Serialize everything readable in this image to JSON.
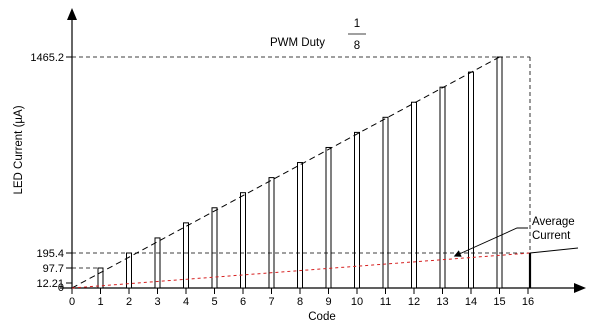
{
  "chart_data": {
    "type": "bar",
    "title_prefix": "PWM Duty",
    "duty_numerator": "1",
    "duty_denominator": "8",
    "xlabel": "Code",
    "ylabel": "LED Current (µA)",
    "x_ticks": [
      "0",
      "1",
      "2",
      "3",
      "4",
      "5",
      "6",
      "7",
      "8",
      "9",
      "10",
      "11",
      "12",
      "13",
      "14",
      "15",
      "16"
    ],
    "y_ticks": [
      "0",
      "12.21",
      "97.7",
      "195.4",
      "1465.2"
    ],
    "codes": [
      1,
      2,
      3,
      4,
      5,
      6,
      7,
      8,
      9,
      10,
      11,
      12,
      13,
      14,
      15
    ],
    "values": [
      97.7,
      195.4,
      293.0,
      390.7,
      488.4,
      586.1,
      683.8,
      781.4,
      879.1,
      976.8,
      1074.5,
      1172.2,
      1269.8,
      1367.5,
      1465.2
    ],
    "average_current_label": [
      "Average",
      "Current"
    ],
    "average_current_max": 195.4,
    "ylim": [
      0,
      1465.2
    ],
    "xlim": [
      0,
      16
    ],
    "grid": false
  }
}
